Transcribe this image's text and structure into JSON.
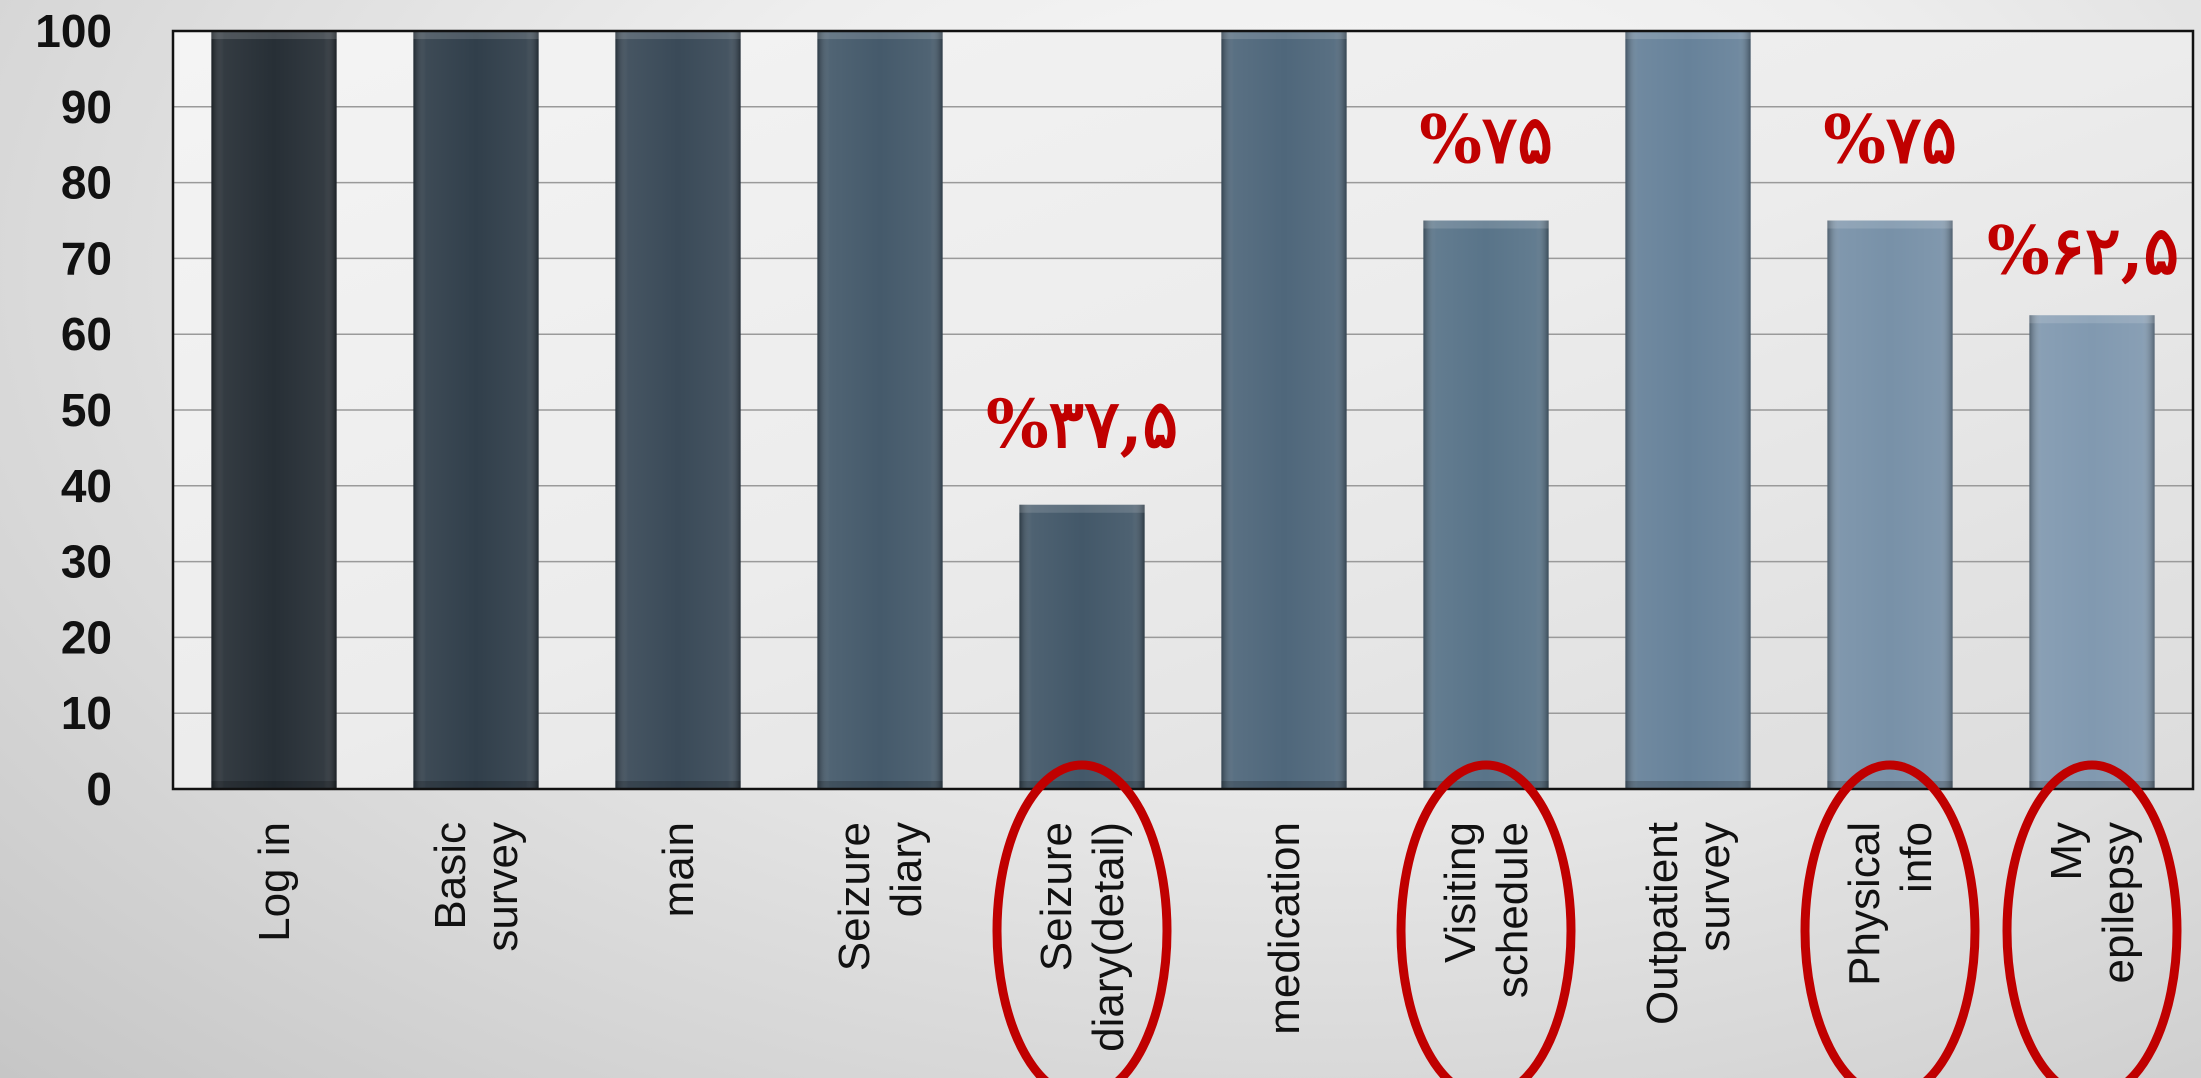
{
  "chart_data": {
    "type": "bar",
    "categories": [
      [
        "Log in"
      ],
      [
        "Basic",
        "survey"
      ],
      [
        "main"
      ],
      [
        "Seizure",
        "diary"
      ],
      [
        "Seizure",
        "diary(detail)"
      ],
      [
        "medication"
      ],
      [
        "Visiting",
        "schedule"
      ],
      [
        "Outpatient",
        "survey"
      ],
      [
        "Physical",
        "info"
      ],
      [
        "My",
        "epilepsy"
      ]
    ],
    "values": [
      100,
      100,
      100,
      100,
      37.5,
      100,
      75,
      100,
      75,
      62.5
    ],
    "annotations": [
      {
        "category_index": 4,
        "text": "%۳۷,۵"
      },
      {
        "category_index": 6,
        "text": "%۷۵"
      },
      {
        "category_index": 8,
        "text": "%۷۵"
      },
      {
        "category_index": 9,
        "text": "%۶۲,۵"
      }
    ],
    "highlighted_categories": [
      4,
      6,
      8,
      9
    ],
    "yticks": [
      "0",
      "10",
      "20",
      "30",
      "40",
      "50",
      "60",
      "70",
      "80",
      "90",
      "100"
    ],
    "ylim": [
      0,
      100
    ],
    "grid": true,
    "title": "",
    "xlabel": "",
    "ylabel": "",
    "colors": {
      "bars": [
        "#272f36",
        "#313f4b",
        "#3a4a58",
        "#455a6b",
        "#435869",
        "#4f677b",
        "#597489",
        "#67829a",
        "#7891a8",
        "#8199b0"
      ],
      "annotation": "#c00000",
      "highlight_ellipse": "#c00000",
      "grid": "#9a9a9a",
      "axis": "#111111"
    }
  }
}
